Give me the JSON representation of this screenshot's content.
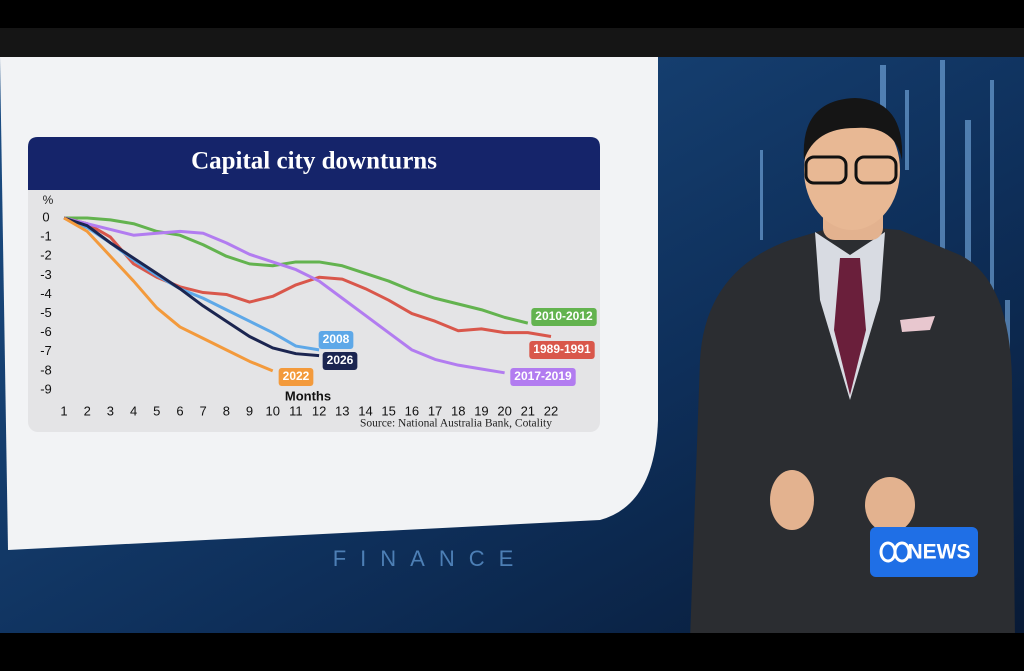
{
  "chart_data": {
    "type": "line",
    "title": "Capital city downturns",
    "y_unit": "%",
    "x_label": "Months",
    "source": "Source: National Australia Bank, Cotality",
    "x": [
      1,
      2,
      3,
      4,
      5,
      6,
      7,
      8,
      9,
      10,
      11,
      12,
      13,
      14,
      15,
      16,
      17,
      18,
      19,
      20,
      21,
      22
    ],
    "xlim": [
      1,
      22
    ],
    "xticks": [
      1,
      2,
      3,
      4,
      5,
      6,
      7,
      8,
      9,
      10,
      11,
      12,
      13,
      14,
      15,
      16,
      17,
      18,
      19,
      20,
      21,
      22
    ],
    "ylim": [
      -9,
      0
    ],
    "yticks": [
      0,
      -1,
      -2,
      -3,
      -4,
      -5,
      -6,
      -7,
      -8,
      -9
    ],
    "series": [
      {
        "name": "2010-2012",
        "color": "#63b34f",
        "values": [
          0,
          0,
          -0.1,
          -0.3,
          -0.7,
          -0.9,
          -1.4,
          -2.0,
          -2.4,
          -2.5,
          -2.3,
          -2.3,
          -2.5,
          -2.9,
          -3.3,
          -3.8,
          -4.2,
          -4.5,
          -4.8,
          -5.2,
          -5.5,
          null
        ]
      },
      {
        "name": "1989-1991",
        "color": "#d9574b",
        "values": [
          0,
          -0.3,
          -1.0,
          -2.4,
          -3.1,
          -3.6,
          -3.9,
          -4.0,
          -4.4,
          -4.1,
          -3.5,
          -3.1,
          -3.2,
          -3.7,
          -4.3,
          -5.0,
          -5.4,
          -5.9,
          -5.8,
          -6.0,
          -6.0,
          -6.2
        ]
      },
      {
        "name": "2017-2019",
        "color": "#b27cf0",
        "values": [
          0,
          -0.3,
          -0.6,
          -0.9,
          -0.8,
          -0.7,
          -0.8,
          -1.3,
          -1.9,
          -2.3,
          -2.7,
          -3.3,
          -4.2,
          -5.1,
          -6.0,
          -6.9,
          -7.4,
          -7.7,
          -7.9,
          -8.1,
          null,
          null
        ]
      },
      {
        "name": "2008",
        "color": "#5ea8e8",
        "values": [
          0,
          -0.5,
          -1.3,
          -2.2,
          -3.0,
          -3.7,
          -4.2,
          -4.8,
          -5.4,
          -6.0,
          -6.7,
          -6.9,
          null,
          null,
          null,
          null,
          null,
          null,
          null,
          null,
          null,
          null
        ]
      },
      {
        "name": "2026",
        "color": "#1b2550",
        "values": [
          0,
          -0.4,
          -1.3,
          -2.1,
          -2.9,
          -3.7,
          -4.6,
          -5.4,
          -6.2,
          -6.8,
          -7.1,
          -7.2,
          null,
          null,
          null,
          null,
          null,
          null,
          null,
          null,
          null,
          null
        ]
      },
      {
        "name": "2022",
        "color": "#f39a3c",
        "values": [
          0,
          -0.7,
          -2.0,
          -3.3,
          -4.7,
          -5.7,
          -6.3,
          -6.9,
          -7.5,
          -8.0,
          null,
          null,
          null,
          null,
          null,
          null,
          null,
          null,
          null,
          null,
          null,
          null
        ]
      }
    ]
  },
  "studio": {
    "wall_text": "FINANCE",
    "logo": "NEWS"
  }
}
